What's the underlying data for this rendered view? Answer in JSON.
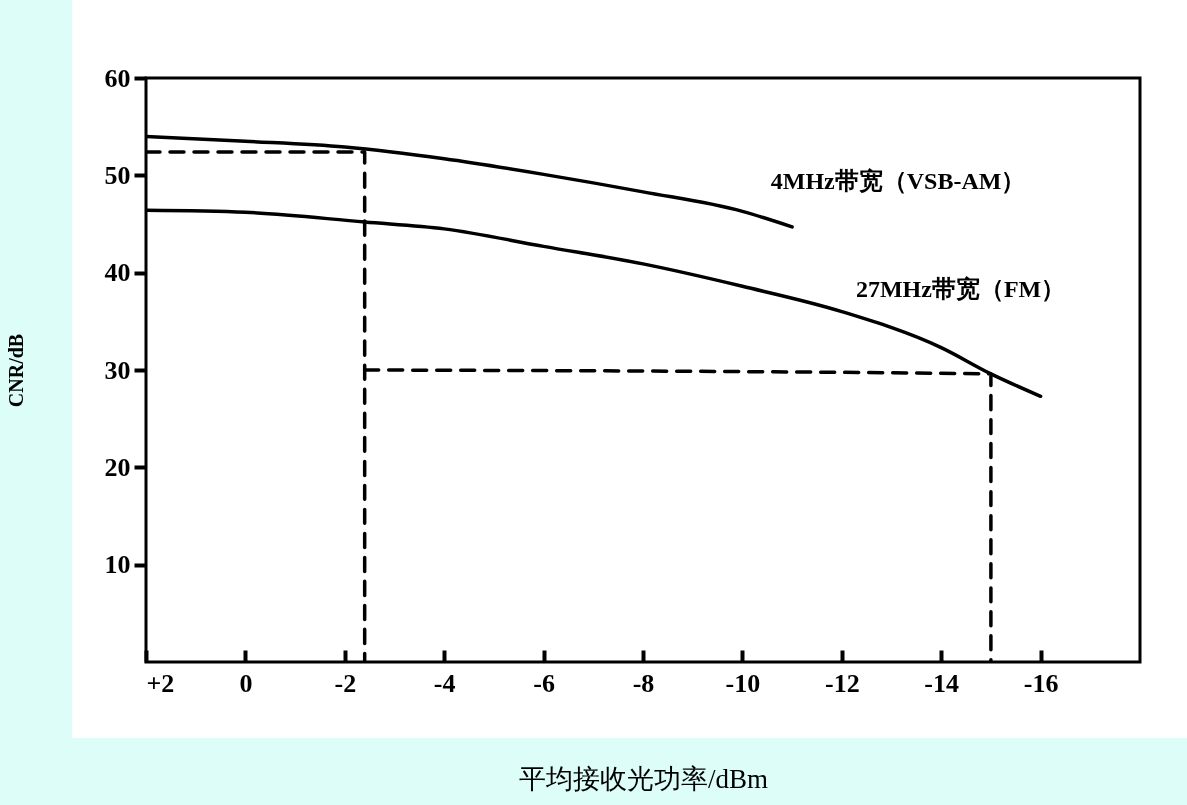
{
  "chart_data": {
    "type": "line",
    "xlabel": "平均接收光功率/dBm",
    "ylabel": "CNR/dB",
    "xlim": [
      2,
      -18
    ],
    "xticks": [
      {
        "value": 2,
        "label": "+2"
      },
      0,
      -2,
      -4,
      -6,
      -8,
      -10,
      -12,
      -14,
      -16
    ],
    "ylim": [
      0,
      60
    ],
    "yticks": [
      10,
      20,
      30,
      40,
      50,
      60
    ],
    "series": [
      {
        "name": "4MHz带宽（VSB-AM）",
        "color": "#000000",
        "line_style": "solid",
        "x": [
          2,
          0,
          -2,
          -4,
          -6,
          -8,
          -10,
          -11
        ],
        "values": [
          54,
          53.5,
          52.9,
          51.7,
          50.1,
          48.3,
          46.3,
          44.7
        ]
      },
      {
        "name": "27MHz带宽（FM）",
        "color": "#000000",
        "line_style": "solid",
        "x": [
          2,
          0,
          -2.4,
          -4,
          -6,
          -8,
          -10,
          -12,
          -14,
          -15,
          -16
        ],
        "values": [
          46.4,
          46.2,
          45.2,
          44.5,
          42.7,
          40.9,
          38.6,
          36,
          32.3,
          29.6,
          27.3
        ]
      },
      {
        "color": "#000000",
        "line_style": "dashed",
        "x": [
          2,
          -2.4,
          -2.4
        ],
        "values": [
          52.4,
          52.4,
          0
        ]
      },
      {
        "color": "#000000",
        "line_style": "dashed",
        "x": [
          -2.4,
          -15,
          -15
        ],
        "values": [
          30,
          29.6,
          0
        ]
      }
    ]
  }
}
